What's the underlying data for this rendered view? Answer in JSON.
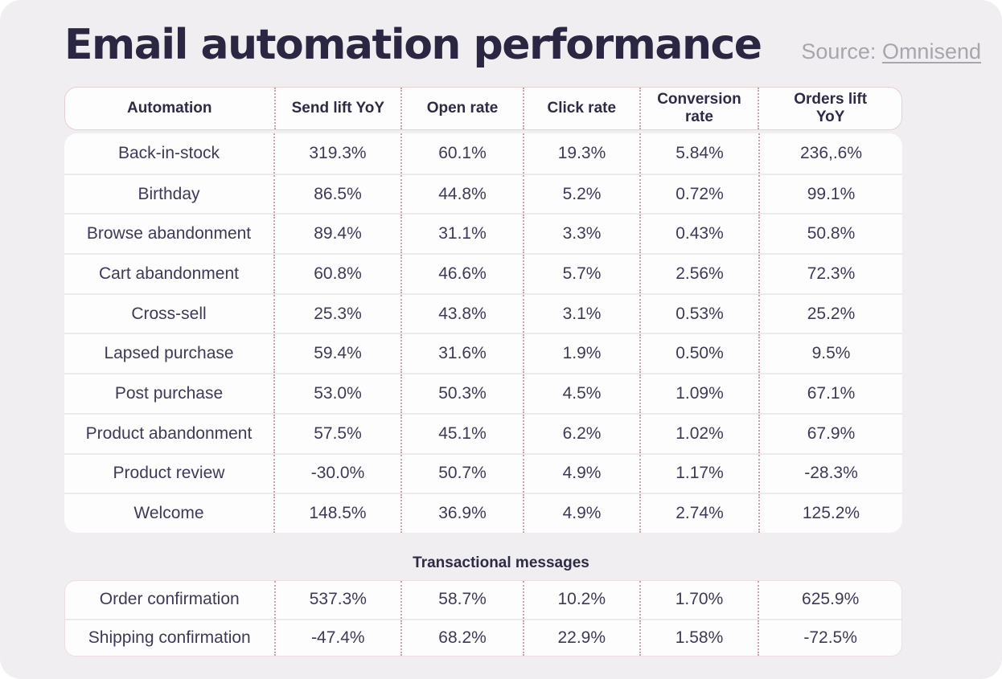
{
  "page": {
    "title": "Email automation performance",
    "source_label": "Source:",
    "source_link": "Omnisend"
  },
  "table": {
    "columns": [
      "Automation",
      "Send lift YoY",
      "Open rate",
      "Click rate",
      "Conversion rate",
      "Orders lift YoY"
    ],
    "rows": [
      {
        "label": "Back-in-stock",
        "values": [
          "319.3%",
          "60.1%",
          "19.3%",
          "5.84%",
          "236,.6%"
        ]
      },
      {
        "label": "Birthday",
        "values": [
          "86.5%",
          "44.8%",
          "5.2%",
          "0.72%",
          "99.1%"
        ]
      },
      {
        "label": "Browse abandonment",
        "values": [
          "89.4%",
          "31.1%",
          "3.3%",
          "0.43%",
          "50.8%"
        ]
      },
      {
        "label": "Cart abandonment",
        "values": [
          "60.8%",
          "46.6%",
          "5.7%",
          "2.56%",
          "72.3%"
        ]
      },
      {
        "label": "Cross-sell",
        "values": [
          "25.3%",
          "43.8%",
          "3.1%",
          "0.53%",
          "25.2%"
        ]
      },
      {
        "label": "Lapsed purchase",
        "values": [
          "59.4%",
          "31.6%",
          "1.9%",
          "0.50%",
          "9.5%"
        ]
      },
      {
        "label": "Post purchase",
        "values": [
          "53.0%",
          "50.3%",
          "4.5%",
          "1.09%",
          "67.1%"
        ]
      },
      {
        "label": "Product abandonment",
        "values": [
          "57.5%",
          "45.1%",
          "6.2%",
          "1.02%",
          "67.9%"
        ]
      },
      {
        "label": "Product review",
        "values": [
          "-30.0%",
          "50.7%",
          "4.9%",
          "1.17%",
          "-28.3%"
        ]
      },
      {
        "label": "Welcome",
        "values": [
          "148.5%",
          "36.9%",
          "4.9%",
          "2.74%",
          "125.2%"
        ]
      }
    ]
  },
  "transactional": {
    "heading": "Transactional messages",
    "rows": [
      {
        "label": "Order confirmation",
        "values": [
          "537.3%",
          "58.7%",
          "10.2%",
          "1.70%",
          "625.9%"
        ]
      },
      {
        "label": "Shipping confirmation",
        "values": [
          "-47.4%",
          "68.2%",
          "22.9%",
          "1.58%",
          "-72.5%"
        ]
      }
    ]
  },
  "colors": {
    "background": "#f0eef1",
    "title_text": "#2b2742",
    "cell_text": "#3e3a55",
    "header_border_pink": "#e9ced3",
    "dotted_separator": "#c9a4ae",
    "row_divider": "#eceaee",
    "source_gray": "#a7a5ad",
    "row_background": "#fdfdfe"
  },
  "chart_data": {
    "type": "table",
    "title": "Email automation performance",
    "source": "Omnisend",
    "columns": [
      "Automation",
      "Send lift YoY",
      "Open rate",
      "Click rate",
      "Conversion rate",
      "Orders lift YoY"
    ],
    "rows": [
      [
        "Back-in-stock",
        "319.3%",
        "60.1%",
        "19.3%",
        "5.84%",
        "236,.6%"
      ],
      [
        "Birthday",
        "86.5%",
        "44.8%",
        "5.2%",
        "0.72%",
        "99.1%"
      ],
      [
        "Browse abandonment",
        "89.4%",
        "31.1%",
        "3.3%",
        "0.43%",
        "50.8%"
      ],
      [
        "Cart abandonment",
        "60.8%",
        "46.6%",
        "5.7%",
        "2.56%",
        "72.3%"
      ],
      [
        "Cross-sell",
        "25.3%",
        "43.8%",
        "3.1%",
        "0.53%",
        "25.2%"
      ],
      [
        "Lapsed purchase",
        "59.4%",
        "31.6%",
        "1.9%",
        "0.50%",
        "9.5%"
      ],
      [
        "Post purchase",
        "53.0%",
        "50.3%",
        "4.5%",
        "1.09%",
        "67.1%"
      ],
      [
        "Product abandonment",
        "57.5%",
        "45.1%",
        "6.2%",
        "1.02%",
        "67.9%"
      ],
      [
        "Product review",
        "-30.0%",
        "50.7%",
        "4.9%",
        "1.17%",
        "-28.3%"
      ],
      [
        "Welcome",
        "148.5%",
        "36.9%",
        "4.9%",
        "2.74%",
        "125.2%"
      ],
      [
        "Order confirmation",
        "537.3%",
        "58.7%",
        "10.2%",
        "1.70%",
        "625.9%"
      ],
      [
        "Shipping confirmation",
        "-47.4%",
        "68.2%",
        "22.9%",
        "1.58%",
        "-72.5%"
      ]
    ],
    "section_break": {
      "after_row": "Welcome",
      "heading": "Transactional messages"
    }
  }
}
